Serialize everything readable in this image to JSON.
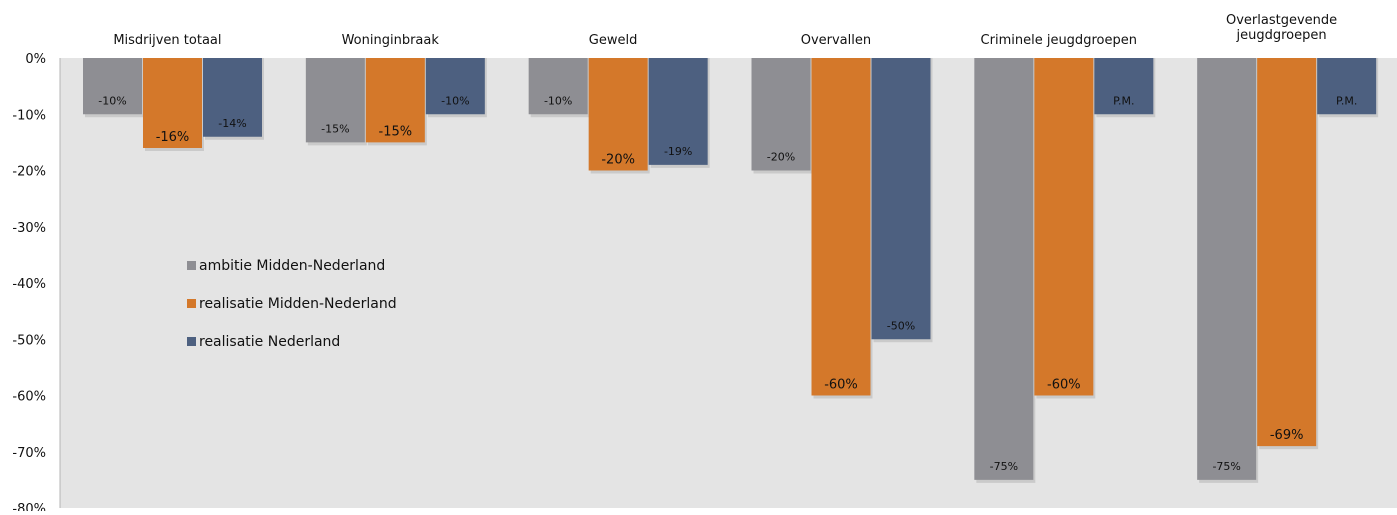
{
  "chart_data": {
    "type": "bar",
    "title": "",
    "xlabel": "",
    "ylabel": "",
    "ylim": [
      -80,
      0
    ],
    "yticks": [
      "0%",
      "-10%",
      "-20%",
      "-30%",
      "-40%",
      "-50%",
      "-60%",
      "-70%",
      "-80%"
    ],
    "ytick_values": [
      0,
      -10,
      -20,
      -30,
      -40,
      -50,
      -60,
      -70,
      -80
    ],
    "categories": [
      [
        "Misdrijven totaal"
      ],
      [
        "Woninginbraak"
      ],
      [
        "Geweld"
      ],
      [
        "Overvallen"
      ],
      [
        "Criminele jeugdgroepen"
      ],
      [
        "Overlastgevende",
        "jeugdgroepen"
      ]
    ],
    "series": [
      {
        "name": "ambitie Midden-Nederland",
        "color": "#8e8e93",
        "values": [
          -10,
          -15,
          -10,
          -20,
          -75,
          -75
        ],
        "labels": [
          "-10%",
          "-15%",
          "-10%",
          "-20%",
          "-75%",
          "-75%"
        ]
      },
      {
        "name": "realisatie Midden-Nederland",
        "color": "#d4782a",
        "values": [
          -16,
          -15,
          -20,
          -60,
          -60,
          -69
        ],
        "labels": [
          "-16%",
          "-15%",
          "-20%",
          "-60%",
          "-60%",
          "-69%"
        ]
      },
      {
        "name": "realisatie Nederland",
        "color": "#4d6080",
        "values": [
          -14,
          -10,
          -19,
          -50,
          -10,
          -10
        ],
        "labels": [
          "-14%",
          "-10%",
          "-19%",
          "-50%",
          "P.M.",
          "P.M."
        ]
      }
    ],
    "plot_background": "#e4e4e4",
    "grid": false,
    "legend_position": "inside-left"
  }
}
